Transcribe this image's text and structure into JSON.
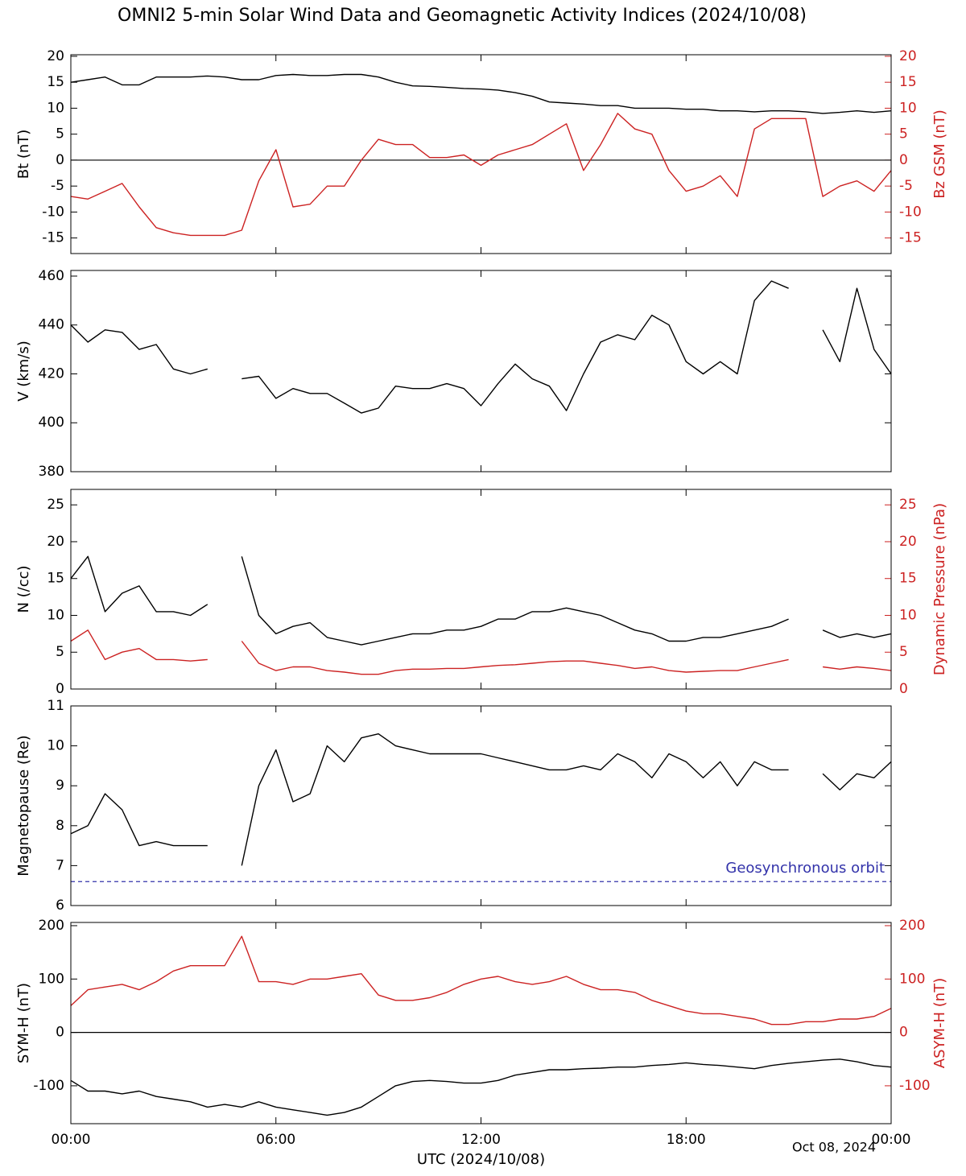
{
  "chart_data": [
    {
      "type": "line",
      "title": "OMNI2 5-min Solar Wind Data and Geomagnetic Activity Indices (2024/10/08)",
      "ylabel": "Bt (nT)",
      "y2label": "Bz GSM (nT)",
      "x": [
        0,
        0.5,
        1,
        1.5,
        2,
        2.5,
        3,
        3.5,
        4,
        4.5,
        5,
        5.5,
        6,
        6.5,
        7,
        7.5,
        8,
        8.5,
        9,
        9.5,
        10,
        10.5,
        11,
        11.5,
        12,
        12.5,
        13,
        13.5,
        14,
        14.5,
        15,
        15.5,
        16,
        16.5,
        17,
        17.5,
        18,
        18.5,
        19,
        19.5,
        20,
        20.5,
        21,
        21.5,
        22,
        22.5,
        23,
        23.5,
        24
      ],
      "xlim": [
        0,
        24
      ],
      "xticks": [
        0,
        6,
        12,
        18,
        24
      ],
      "ylim": [
        -18,
        20.3
      ],
      "yticks": [
        -15,
        -10,
        -5,
        0,
        5,
        10,
        15,
        20
      ],
      "y2lim": [
        -18,
        20.3
      ],
      "y2ticks": [
        -15,
        -10,
        -5,
        0,
        5,
        10,
        15,
        20
      ],
      "y2color": "#cc2222",
      "reference": {
        "value": 0,
        "color": "#000000",
        "dashed": false
      },
      "series": [
        {
          "color": "#000000",
          "axis": "y",
          "values": [
            15,
            15.5,
            16,
            14.5,
            14.5,
            16,
            16,
            16,
            16.2,
            16,
            15.5,
            15.5,
            16.3,
            16.5,
            16.3,
            16.3,
            16.5,
            16.5,
            16,
            15,
            14.3,
            14.2,
            14,
            13.8,
            13.7,
            13.5,
            13,
            12.3,
            11.2,
            11,
            10.8,
            10.5,
            10.5,
            10,
            10,
            10,
            9.8,
            9.8,
            9.5,
            9.5,
            9.3,
            9.5,
            9.5,
            9.3,
            9,
            9.2,
            9.5,
            9.2,
            9.5
          ]
        },
        {
          "color": "#cc2222",
          "axis": "y2",
          "values": [
            -7,
            -7.5,
            -6,
            -4.5,
            -9,
            -13,
            -14,
            -14.5,
            -14.5,
            -14.5,
            -13.5,
            -4,
            2,
            -9,
            -8.5,
            -5,
            -5,
            0,
            4,
            3,
            3,
            0.5,
            0.5,
            1,
            -1,
            1,
            2,
            3,
            5,
            7,
            -2,
            3,
            9,
            6,
            5,
            -2,
            -6,
            -5,
            -3,
            -7,
            6,
            8,
            8,
            8,
            -7,
            -5,
            -4,
            -6,
            -2
          ]
        }
      ]
    },
    {
      "type": "line",
      "ylabel": "V (km/s)",
      "x": [
        0,
        0.5,
        1,
        1.5,
        2,
        2.5,
        3,
        3.5,
        4,
        4.5,
        5,
        5.5,
        6,
        6.5,
        7,
        7.5,
        8,
        8.5,
        9,
        9.5,
        10,
        10.5,
        11,
        11.5,
        12,
        12.5,
        13,
        13.5,
        14,
        14.5,
        15,
        15.5,
        16,
        16.5,
        17,
        17.5,
        18,
        18.5,
        19,
        19.5,
        20,
        20.5,
        21,
        21.5,
        22,
        22.5,
        23,
        23.5,
        24
      ],
      "xlim": [
        0,
        24
      ],
      "xticks": [
        0,
        6,
        12,
        18,
        24
      ],
      "ylim": [
        380,
        462.3
      ],
      "yticks": [
        380,
        400,
        420,
        440,
        460
      ],
      "series": [
        {
          "color": "#000000",
          "axis": "y",
          "values": [
            440,
            433,
            438,
            437,
            430,
            432,
            422,
            420,
            422,
            null,
            418,
            419,
            410,
            414,
            412,
            412,
            408,
            404,
            406,
            415,
            414,
            414,
            416,
            414,
            407,
            416,
            424,
            418,
            415,
            405,
            420,
            433,
            436,
            434,
            444,
            440,
            425,
            420,
            425,
            420,
            450,
            458,
            455,
            null,
            438,
            425,
            455,
            430,
            420
          ]
        }
      ]
    },
    {
      "type": "line",
      "ylabel": "N (/cc)",
      "y2label": "Dynamic Pressure (nPa)",
      "x": [
        0,
        0.5,
        1,
        1.5,
        2,
        2.5,
        3,
        3.5,
        4,
        4.5,
        5,
        5.5,
        6,
        6.5,
        7,
        7.5,
        8,
        8.5,
        9,
        9.5,
        10,
        10.5,
        11,
        11.5,
        12,
        12.5,
        13,
        13.5,
        14,
        14.5,
        15,
        15.5,
        16,
        16.5,
        17,
        17.5,
        18,
        18.5,
        19,
        19.5,
        20,
        20.5,
        21,
        21.5,
        22,
        22.5,
        23,
        23.5,
        24
      ],
      "xlim": [
        0,
        24
      ],
      "xticks": [
        0,
        6,
        12,
        18,
        24
      ],
      "ylim": [
        0,
        27.1
      ],
      "yticks": [
        0,
        5,
        10,
        15,
        20,
        25
      ],
      "y2lim": [
        0,
        27.1
      ],
      "y2ticks": [
        0,
        5,
        10,
        15,
        20,
        25
      ],
      "y2color": "#cc2222",
      "series": [
        {
          "color": "#000000",
          "axis": "y",
          "values": [
            15,
            18,
            10.5,
            13,
            14,
            10.5,
            10.5,
            10,
            11.5,
            null,
            18,
            10,
            7.5,
            8.5,
            9,
            7,
            6.5,
            6,
            6.5,
            7,
            7.5,
            7.5,
            8,
            8,
            8.5,
            9.5,
            9.5,
            10.5,
            10.5,
            11,
            10.5,
            10,
            9,
            8,
            7.5,
            6.5,
            6.5,
            7,
            7,
            7.5,
            8,
            8.5,
            9.5,
            null,
            8,
            7,
            7.5,
            7,
            7.5
          ]
        },
        {
          "color": "#cc2222",
          "axis": "y2",
          "values": [
            6.5,
            8,
            4,
            5,
            5.5,
            4,
            4,
            3.8,
            4,
            null,
            6.5,
            3.5,
            2.5,
            3,
            3,
            2.5,
            2.3,
            2,
            2,
            2.5,
            2.7,
            2.7,
            2.8,
            2.8,
            3,
            3.2,
            3.3,
            3.5,
            3.7,
            3.8,
            3.8,
            3.5,
            3.2,
            2.8,
            3,
            2.5,
            2.3,
            2.4,
            2.5,
            2.5,
            3,
            3.5,
            4,
            null,
            3,
            2.7,
            3,
            2.8,
            2.5
          ]
        }
      ]
    },
    {
      "type": "line",
      "ylabel": "Magnetopause (Re)",
      "x": [
        0,
        0.5,
        1,
        1.5,
        2,
        2.5,
        3,
        3.5,
        4,
        4.5,
        5,
        5.5,
        6,
        6.5,
        7,
        7.5,
        8,
        8.5,
        9,
        9.5,
        10,
        10.5,
        11,
        11.5,
        12,
        12.5,
        13,
        13.5,
        14,
        14.5,
        15,
        15.5,
        16,
        16.5,
        17,
        17.5,
        18,
        18.5,
        19,
        19.5,
        20,
        20.5,
        21,
        21.5,
        22,
        22.5,
        23,
        23.5,
        24
      ],
      "xlim": [
        0,
        24
      ],
      "xticks": [
        0,
        6,
        12,
        18,
        24
      ],
      "ylim": [
        6,
        11
      ],
      "yticks": [
        6,
        7,
        8,
        9,
        10,
        11
      ],
      "reference": {
        "value": 6.6,
        "label": "Geosynchronous orbit",
        "color": "#3333aa",
        "dashed": true
      },
      "series": [
        {
          "color": "#000000",
          "axis": "y",
          "values": [
            7.8,
            8,
            8.8,
            8.4,
            7.5,
            7.6,
            7.5,
            7.5,
            7.5,
            null,
            7,
            9,
            9.9,
            8.6,
            8.8,
            10,
            9.6,
            10.2,
            10.3,
            10,
            9.9,
            9.8,
            9.8,
            9.8,
            9.8,
            9.7,
            9.6,
            9.5,
            9.4,
            9.4,
            9.5,
            9.4,
            9.8,
            9.6,
            9.2,
            9.8,
            9.6,
            9.2,
            9.6,
            9,
            9.6,
            9.4,
            9.4,
            null,
            9.3,
            8.9,
            9.3,
            9.2,
            9.6
          ]
        }
      ]
    },
    {
      "type": "line",
      "ylabel": "SYM-H (nT)",
      "y2label": "ASYM-H (nT)",
      "xlabel": "UTC (2024/10/08)",
      "annotation": "Oct 08, 2024",
      "x": [
        0,
        0.5,
        1,
        1.5,
        2,
        2.5,
        3,
        3.5,
        4,
        4.5,
        5,
        5.5,
        6,
        6.5,
        7,
        7.5,
        8,
        8.5,
        9,
        9.5,
        10,
        10.5,
        11,
        11.5,
        12,
        12.5,
        13,
        13.5,
        14,
        14.5,
        15,
        15.5,
        16,
        16.5,
        17,
        17.5,
        18,
        18.5,
        19,
        19.5,
        20,
        20.5,
        21,
        21.5,
        22,
        22.5,
        23,
        23.5,
        24
      ],
      "xlim": [
        0,
        24
      ],
      "xticks": [
        {
          "value": 0,
          "label": "00:00"
        },
        {
          "value": 6,
          "label": "06:00"
        },
        {
          "value": 12,
          "label": "12:00"
        },
        {
          "value": 18,
          "label": "18:00"
        },
        {
          "value": 24,
          "label": "00:00"
        }
      ],
      "ylim": [
        -171,
        206
      ],
      "yticks": [
        -100,
        0,
        100,
        200
      ],
      "y2lim": [
        -171,
        206
      ],
      "y2ticks": [
        -100,
        0,
        100,
        200
      ],
      "y2color": "#cc2222",
      "reference": {
        "value": 0,
        "color": "#000000",
        "dashed": false
      },
      "series": [
        {
          "color": "#000000",
          "axis": "y",
          "values": [
            -90,
            -110,
            -110,
            -115,
            -110,
            -120,
            -125,
            -130,
            -140,
            -135,
            -140,
            -130,
            -140,
            -145,
            -150,
            -155,
            -150,
            -140,
            -120,
            -100,
            -92,
            -90,
            -92,
            -95,
            -95,
            -90,
            -80,
            -75,
            -70,
            -70,
            -68,
            -67,
            -65,
            -65,
            -62,
            -60,
            -57,
            -60,
            -62,
            -65,
            -68,
            -62,
            -58,
            -55,
            -52,
            -50,
            -55,
            -62,
            -65
          ]
        },
        {
          "color": "#cc2222",
          "axis": "y2",
          "values": [
            50,
            80,
            85,
            90,
            80,
            95,
            115,
            125,
            125,
            125,
            180,
            95,
            95,
            90,
            100,
            100,
            105,
            110,
            70,
            60,
            60,
            65,
            75,
            90,
            100,
            105,
            95,
            90,
            95,
            105,
            90,
            80,
            80,
            75,
            60,
            50,
            40,
            35,
            35,
            30,
            25,
            15,
            15,
            20,
            20,
            25,
            25,
            30,
            45
          ]
        }
      ]
    }
  ]
}
